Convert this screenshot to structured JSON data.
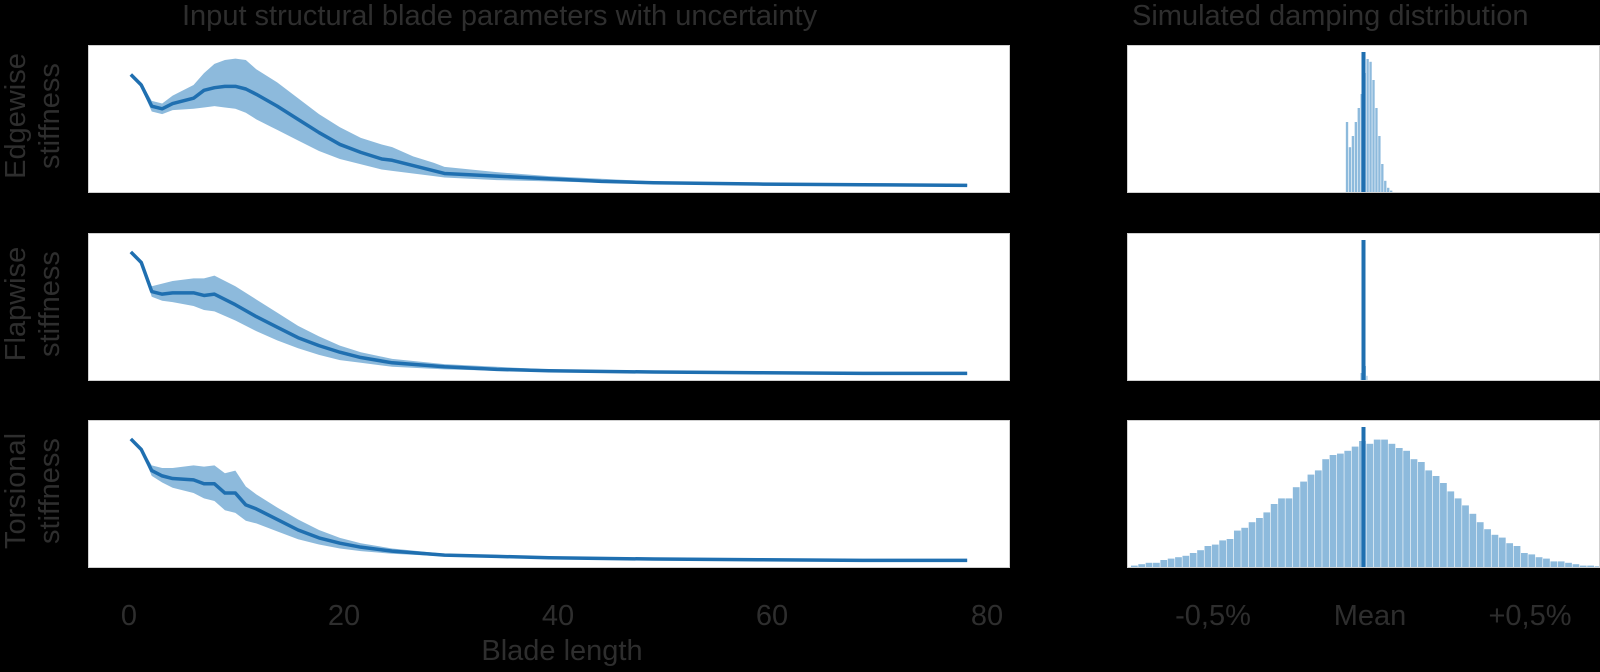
{
  "titles": {
    "left": "Input structural blade parameters with uncertainty",
    "right": "Simulated damping distribution"
  },
  "row_labels": [
    {
      "line1": "Edgewise",
      "line2": "stiffness"
    },
    {
      "line1": "Flapwise",
      "line2": "stiffness"
    },
    {
      "line1": "Torsional",
      "line2": "stiffness"
    }
  ],
  "left_xaxis": {
    "label": "Blade length",
    "ticks": [
      "0",
      "20",
      "40",
      "60",
      "80"
    ]
  },
  "right_xaxis": {
    "ticks": [
      "-0,5%",
      "Mean",
      "+0,5%"
    ]
  },
  "colors": {
    "line": "#1f6fb0",
    "band": "#8dbadc",
    "hist": "#8dbadc",
    "mean": "#1f6fb0",
    "background": "#000000"
  },
  "chart_data": [
    {
      "type": "line",
      "title": "Input structural blade parameters with uncertainty",
      "panel": "Edgewise stiffness",
      "xlabel": "Blade length",
      "ylabel": "Edgewise stiffness",
      "xlim": [
        -4,
        84
      ],
      "ylim": [
        0,
        1
      ],
      "x": [
        0,
        1,
        2,
        3,
        4,
        6,
        7,
        8,
        9,
        10,
        11,
        12,
        14,
        16,
        18,
        20,
        22,
        24,
        25,
        27,
        29,
        30,
        35,
        40,
        45,
        50,
        60,
        70,
        80
      ],
      "mean": [
        0.86,
        0.78,
        0.62,
        0.6,
        0.64,
        0.68,
        0.74,
        0.76,
        0.77,
        0.77,
        0.75,
        0.71,
        0.62,
        0.52,
        0.42,
        0.33,
        0.27,
        0.22,
        0.21,
        0.17,
        0.13,
        0.11,
        0.09,
        0.07,
        0.05,
        0.04,
        0.03,
        0.025,
        0.02
      ],
      "upper": [
        0.86,
        0.8,
        0.66,
        0.64,
        0.7,
        0.78,
        0.87,
        0.94,
        0.97,
        0.98,
        0.97,
        0.9,
        0.8,
        0.68,
        0.56,
        0.46,
        0.38,
        0.33,
        0.31,
        0.24,
        0.19,
        0.16,
        0.12,
        0.09,
        0.07,
        0.05,
        0.04,
        0.03,
        0.03
      ],
      "lower": [
        0.86,
        0.76,
        0.58,
        0.56,
        0.59,
        0.6,
        0.61,
        0.62,
        0.61,
        0.6,
        0.57,
        0.52,
        0.44,
        0.36,
        0.28,
        0.22,
        0.18,
        0.14,
        0.13,
        0.11,
        0.09,
        0.08,
        0.06,
        0.05,
        0.04,
        0.03,
        0.025,
        0.02,
        0.015
      ]
    },
    {
      "type": "line",
      "panel": "Flapwise stiffness",
      "xlabel": "Blade length",
      "ylabel": "Flapwise stiffness",
      "xlim": [
        -4,
        84
      ],
      "ylim": [
        0,
        1
      ],
      "x": [
        0,
        1,
        2,
        3,
        4,
        6,
        7,
        8,
        10,
        12,
        14,
        16,
        18,
        20,
        22,
        25,
        30,
        35,
        40,
        50,
        60,
        70,
        80
      ],
      "mean": [
        0.94,
        0.86,
        0.64,
        0.62,
        0.63,
        0.63,
        0.61,
        0.62,
        0.54,
        0.45,
        0.37,
        0.29,
        0.23,
        0.18,
        0.14,
        0.1,
        0.07,
        0.05,
        0.04,
        0.03,
        0.025,
        0.02,
        0.02
      ],
      "upper": [
        0.94,
        0.87,
        0.68,
        0.7,
        0.72,
        0.74,
        0.74,
        0.76,
        0.68,
        0.58,
        0.48,
        0.38,
        0.3,
        0.23,
        0.18,
        0.13,
        0.09,
        0.07,
        0.05,
        0.04,
        0.03,
        0.025,
        0.02
      ],
      "lower": [
        0.94,
        0.85,
        0.6,
        0.57,
        0.56,
        0.53,
        0.5,
        0.49,
        0.42,
        0.34,
        0.27,
        0.21,
        0.16,
        0.12,
        0.1,
        0.07,
        0.05,
        0.04,
        0.03,
        0.02,
        0.02,
        0.015,
        0.015
      ]
    },
    {
      "type": "line",
      "panel": "Torsional stiffness",
      "xlabel": "Blade length",
      "ylabel": "Torsional stiffness",
      "xlim": [
        -4,
        84
      ],
      "ylim": [
        0,
        1
      ],
      "x": [
        0,
        1,
        2,
        3,
        4,
        6,
        7,
        8,
        9,
        10,
        11,
        12,
        14,
        16,
        18,
        20,
        22,
        25,
        30,
        35,
        40,
        50,
        60,
        70,
        80
      ],
      "mean": [
        0.94,
        0.86,
        0.7,
        0.66,
        0.64,
        0.63,
        0.6,
        0.6,
        0.53,
        0.53,
        0.44,
        0.41,
        0.33,
        0.25,
        0.19,
        0.15,
        0.12,
        0.09,
        0.06,
        0.05,
        0.04,
        0.03,
        0.025,
        0.02,
        0.02
      ],
      "upper": [
        0.94,
        0.87,
        0.74,
        0.72,
        0.72,
        0.74,
        0.73,
        0.74,
        0.68,
        0.7,
        0.58,
        0.52,
        0.42,
        0.33,
        0.25,
        0.19,
        0.15,
        0.11,
        0.07,
        0.06,
        0.05,
        0.035,
        0.03,
        0.025,
        0.02
      ],
      "lower": [
        0.94,
        0.85,
        0.66,
        0.61,
        0.57,
        0.53,
        0.49,
        0.47,
        0.4,
        0.38,
        0.32,
        0.3,
        0.24,
        0.18,
        0.14,
        0.11,
        0.09,
        0.07,
        0.05,
        0.04,
        0.03,
        0.025,
        0.02,
        0.015,
        0.015
      ]
    },
    {
      "type": "bar",
      "title": "Simulated damping distribution",
      "panel": "Edgewise stiffness damping histogram",
      "xticks": [
        "-0,5%",
        "Mean",
        "+0,5%"
      ],
      "xlim": [
        -0.8,
        0.8
      ],
      "mean_line": 0,
      "bins_x": [
        -0.06,
        -0.05,
        -0.04,
        -0.03,
        -0.02,
        -0.01,
        0.0,
        0.01,
        0.02,
        0.03,
        0.04,
        0.05,
        0.06,
        0.07,
        0.08,
        0.09
      ],
      "values": [
        0.5,
        0.32,
        0.4,
        0.5,
        0.6,
        0.7,
        0.85,
        0.95,
        0.93,
        0.8,
        0.6,
        0.4,
        0.2,
        0.08,
        0.03,
        0.01
      ]
    },
    {
      "type": "bar",
      "panel": "Flapwise stiffness damping histogram",
      "xticks": [
        "-0,5%",
        "Mean",
        "+0,5%"
      ],
      "xlim": [
        -0.8,
        0.8
      ],
      "mean_line": 0,
      "bins_x": [
        -0.01,
        -0.005,
        0.0,
        0.005,
        0.01
      ],
      "values": [
        0.05,
        0.1,
        0.95,
        0.1,
        0.03
      ]
    },
    {
      "type": "bar",
      "panel": "Torsional stiffness damping histogram",
      "xticks": [
        "-0,5%",
        "Mean",
        "+0,5%"
      ],
      "xlim": [
        -0.8,
        0.8
      ],
      "mean_line": 0,
      "bins_x": [
        -0.79,
        -0.765,
        -0.74,
        -0.715,
        -0.69,
        -0.665,
        -0.64,
        -0.615,
        -0.59,
        -0.565,
        -0.54,
        -0.515,
        -0.49,
        -0.465,
        -0.44,
        -0.415,
        -0.39,
        -0.365,
        -0.34,
        -0.315,
        -0.29,
        -0.265,
        -0.24,
        -0.215,
        -0.19,
        -0.165,
        -0.14,
        -0.115,
        -0.09,
        -0.065,
        -0.04,
        -0.015,
        0.01,
        0.035,
        0.06,
        0.085,
        0.11,
        0.135,
        0.16,
        0.185,
        0.21,
        0.235,
        0.26,
        0.285,
        0.31,
        0.335,
        0.36,
        0.385,
        0.41,
        0.435,
        0.46,
        0.485,
        0.51,
        0.535,
        0.56,
        0.585,
        0.61,
        0.635,
        0.66,
        0.685,
        0.71,
        0.735,
        0.76,
        0.785
      ],
      "values": [
        0.01,
        0.02,
        0.03,
        0.03,
        0.05,
        0.06,
        0.07,
        0.08,
        0.1,
        0.12,
        0.15,
        0.16,
        0.19,
        0.2,
        0.26,
        0.28,
        0.32,
        0.35,
        0.39,
        0.45,
        0.49,
        0.49,
        0.57,
        0.61,
        0.66,
        0.69,
        0.77,
        0.8,
        0.81,
        0.83,
        0.86,
        0.9,
        0.88,
        0.91,
        0.91,
        0.88,
        0.85,
        0.83,
        0.77,
        0.75,
        0.69,
        0.65,
        0.6,
        0.54,
        0.49,
        0.44,
        0.38,
        0.32,
        0.27,
        0.23,
        0.21,
        0.17,
        0.15,
        0.1,
        0.09,
        0.07,
        0.06,
        0.04,
        0.04,
        0.03,
        0.02,
        0.01,
        0.01,
        0.005
      ]
    }
  ]
}
